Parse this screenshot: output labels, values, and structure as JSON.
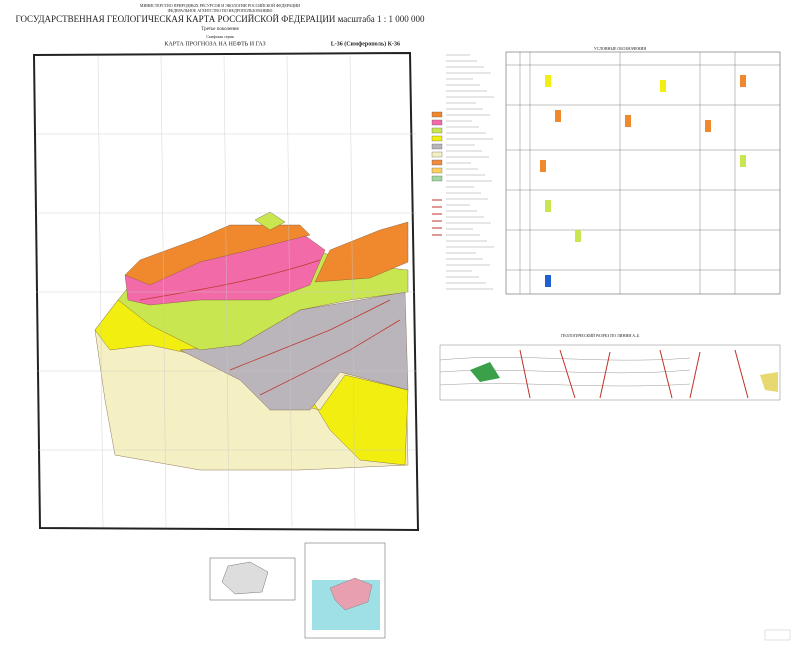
{
  "header": {
    "ministry": "МИНИСТЕРСТВО ПРИРОДНЫХ РЕСУРСОВ И ЭКОЛОГИИ РОССИЙСКОЙ ФЕДЕРАЦИИ",
    "agency": "ФЕДЕРАЛЬНОЕ АГЕНТСТВО ПО НЕДРОПОЛЬЗОВАНИЮ",
    "title": "ГОСУДАРСТВЕННАЯ ГЕОЛОГИЧЕСКАЯ КАРТА РОССИЙСКОЙ ФЕДЕРАЦИИ масштаба 1 : 1 000 000",
    "generation": "Третье поколение",
    "series": "Скифская серия"
  },
  "map": {
    "title": "КАРТА ПРОГНОЗА НА НЕФТЬ И ГАЗ",
    "sheet": "L-36 (Симферополь) К-36"
  },
  "table": {
    "title": "УСЛОВНЫЕ ОБОЗНАЧЕНИЯ"
  },
  "section": {
    "title": "ГЕОЛОГИЧЕСКИЙ РАЗРЕЗ ПО ЛИНИИ А–Б"
  }
}
